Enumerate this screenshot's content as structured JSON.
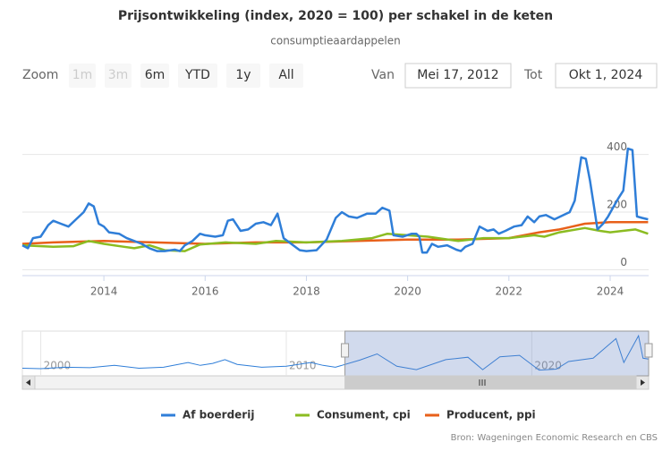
{
  "chart_data": {
    "type": "line",
    "title": "Prijsontwikkeling (index, 2020 = 100) per schakel in de keten",
    "subtitle": "consumptieaardappelen",
    "range_selector": {
      "zoom_label": "Zoom",
      "buttons": [
        "1m",
        "3m",
        "6m",
        "YTD",
        "1y",
        "All"
      ],
      "disabled": [
        true,
        true,
        false,
        false,
        false,
        false
      ],
      "from_label": "Van",
      "from_value": "Mei 17, 2012",
      "to_label": "Tot",
      "to_value": "Okt 1, 2024"
    },
    "xlim": [
      2012.39,
      2024.76
    ],
    "xticks": [
      2014,
      2016,
      2018,
      2020,
      2022,
      2024
    ],
    "ylim": [
      -20,
      470
    ],
    "yticks": [
      0,
      200,
      400
    ],
    "grid": true,
    "series": [
      {
        "name": "Af boerderij",
        "color": "#2f7ed8",
        "x": [
          2012.39,
          2012.5,
          2012.6,
          2012.75,
          2012.9,
          2013.0,
          2013.15,
          2013.3,
          2013.45,
          2013.6,
          2013.7,
          2013.8,
          2013.9,
          2014.0,
          2014.1,
          2014.3,
          2014.45,
          2014.6,
          2014.75,
          2014.9,
          2015.05,
          2015.2,
          2015.4,
          2015.5,
          2015.6,
          2015.75,
          2015.9,
          2016.0,
          2016.2,
          2016.35,
          2016.45,
          2016.55,
          2016.7,
          2016.85,
          2017.0,
          2017.15,
          2017.3,
          2017.43,
          2017.55,
          2017.7,
          2017.87,
          2018.0,
          2018.2,
          2018.4,
          2018.58,
          2018.7,
          2018.84,
          2019.0,
          2019.2,
          2019.37,
          2019.5,
          2019.64,
          2019.72,
          2019.9,
          2020.08,
          2020.17,
          2020.23,
          2020.29,
          2020.38,
          2020.48,
          2020.6,
          2020.78,
          2020.96,
          2021.05,
          2021.14,
          2021.28,
          2021.42,
          2021.58,
          2021.7,
          2021.8,
          2021.93,
          2022.1,
          2022.25,
          2022.37,
          2022.5,
          2022.6,
          2022.73,
          2022.9,
          2023.08,
          2023.2,
          2023.3,
          2023.43,
          2023.52,
          2023.6,
          2023.68,
          2023.75,
          2023.86,
          2023.96,
          2024.07,
          2024.17,
          2024.26,
          2024.35,
          2024.44,
          2024.53,
          2024.63,
          2024.75
        ],
        "values": [
          85,
          75,
          110,
          115,
          155,
          170,
          160,
          150,
          175,
          200,
          230,
          220,
          160,
          150,
          130,
          125,
          110,
          100,
          90,
          75,
          65,
          65,
          70,
          65,
          85,
          100,
          125,
          120,
          115,
          120,
          170,
          175,
          135,
          140,
          160,
          165,
          155,
          195,
          110,
          90,
          68,
          65,
          68,
          105,
          180,
          200,
          185,
          180,
          195,
          195,
          215,
          205,
          120,
          115,
          125,
          125,
          115,
          60,
          60,
          90,
          80,
          85,
          70,
          65,
          80,
          90,
          150,
          135,
          140,
          125,
          135,
          150,
          155,
          185,
          165,
          185,
          190,
          175,
          190,
          200,
          240,
          390,
          385,
          310,
          220,
          140,
          160,
          185,
          220,
          250,
          275,
          420,
          415,
          185,
          180,
          175
        ]
      },
      {
        "name": "Consument, cpi",
        "color": "#8bbc21",
        "x": [
          2012.39,
          2013.0,
          2013.4,
          2013.7,
          2014.0,
          2014.4,
          2014.6,
          2014.9,
          2015.2,
          2015.6,
          2015.9,
          2016.4,
          2017.0,
          2017.4,
          2018.0,
          2018.7,
          2019.3,
          2019.6,
          2020.0,
          2020.4,
          2020.6,
          2021.0,
          2021.5,
          2022.0,
          2022.5,
          2022.7,
          2023.0,
          2023.5,
          2023.8,
          2024.0,
          2024.5,
          2024.75
        ],
        "values": [
          85,
          80,
          82,
          100,
          90,
          80,
          75,
          85,
          68,
          65,
          88,
          95,
          90,
          100,
          95,
          100,
          110,
          125,
          120,
          115,
          110,
          100,
          110,
          110,
          120,
          115,
          130,
          145,
          135,
          130,
          140,
          125
        ]
      },
      {
        "name": "Producent, ppi",
        "color": "#e8601a",
        "x": [
          2012.39,
          2013.0,
          2014.0,
          2015.0,
          2016.0,
          2017.0,
          2018.0,
          2019.0,
          2020.0,
          2021.0,
          2022.0,
          2022.6,
          2023.0,
          2023.5,
          2024.0,
          2024.75
        ],
        "values": [
          90,
          95,
          100,
          95,
          90,
          95,
          95,
          100,
          105,
          105,
          110,
          130,
          140,
          160,
          165,
          165
        ]
      }
    ],
    "navigator": {
      "color": "#2f7ed8",
      "xlim": [
        1999.25,
        2024.76
      ],
      "ylim": [
        0,
        450
      ],
      "xticks": [
        2000,
        2010,
        2020
      ],
      "x": [
        1999.25,
        2000,
        2001,
        2002,
        2003,
        2004,
        2005,
        2006,
        2006.5,
        2007,
        2007.5,
        2008,
        2009,
        2010,
        2011,
        2011.5,
        2012,
        2013,
        2013.7,
        2014.5,
        2015.3,
        2016.5,
        2017.4,
        2018.0,
        2018.7,
        2019.5,
        2020.3,
        2021.0,
        2021.5,
        2022.5,
        2023.43,
        2023.75,
        2024.35,
        2024.53,
        2024.75
      ],
      "values": [
        80,
        75,
        90,
        85,
        110,
        80,
        90,
        140,
        110,
        130,
        170,
        120,
        90,
        100,
        140,
        110,
        90,
        165,
        230,
        100,
        65,
        170,
        195,
        65,
        200,
        215,
        60,
        70,
        150,
        185,
        390,
        140,
        420,
        185,
        175
      ]
    },
    "legend": {
      "position": "bottom"
    },
    "credits": "Bron: Wageningen Economic Research en CBS"
  }
}
